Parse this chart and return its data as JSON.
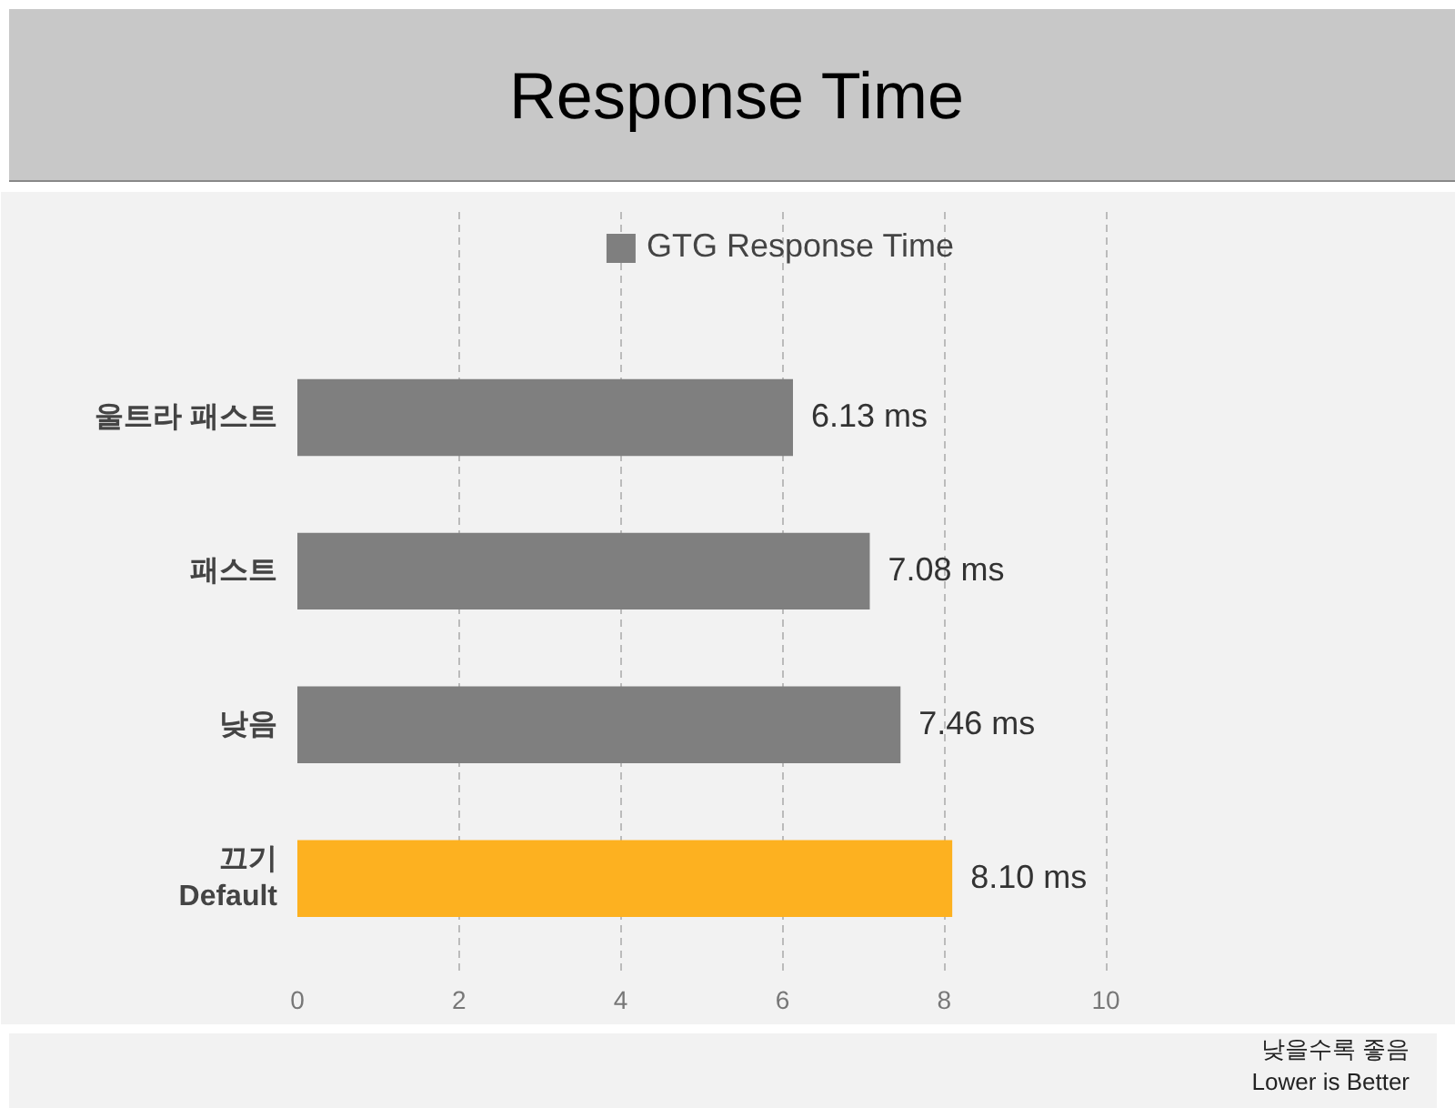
{
  "chart_data": {
    "type": "bar",
    "orientation": "horizontal",
    "title": "Response Time",
    "categories": [
      "울트라 패스트",
      "패스트",
      "낮음",
      "끄기\nDefault"
    ],
    "series": [
      {
        "name": "GTG Response Time",
        "color": "#7f7f7f",
        "colors": [
          null,
          null,
          null,
          "#fdb120"
        ],
        "values": [
          6.13,
          7.08,
          7.46,
          8.1
        ],
        "value_labels": [
          "6.13 ms",
          "7.08 ms",
          "7.46 ms",
          "8.10 ms"
        ]
      }
    ],
    "xlim": [
      0,
      11.9
    ],
    "xticks": [
      0,
      2,
      4,
      6,
      8,
      10
    ],
    "grid": "x",
    "legend": "top",
    "annotations": [
      "낮을수록 좋음",
      "Lower is Better"
    ]
  }
}
